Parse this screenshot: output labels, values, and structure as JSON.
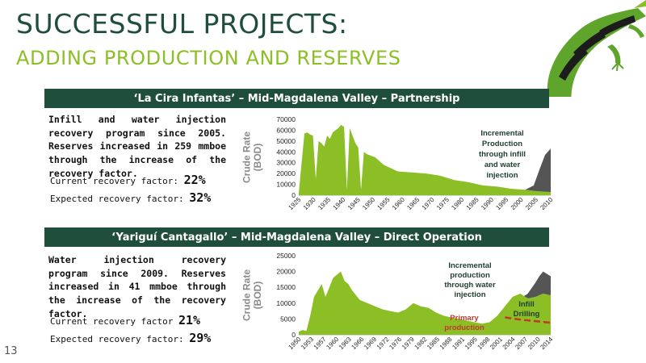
{
  "slide": {
    "title": "SUCCESSFUL PROJECTS:",
    "subtitle": "ADDING PRODUCTION AND RESERVES",
    "page_number": "13",
    "colors": {
      "title": "#1f4e3d",
      "subtitle": "#8cbf26",
      "banner": "#1f4e3d",
      "primary_fill": "#8cbf26",
      "incremental_fill": "#555555",
      "primary_line": "#c0392b"
    },
    "logo_icon": "gecko-icon"
  },
  "section1": {
    "banner": "‘La Cira Infantas’ – Mid-Magdalena Valley – Partnership",
    "description": "Infill and water injection recovery program since 2005. Reserves increased in 259 mmboe through the increase of the recovery factor.",
    "current_label": "Current recovery factor:",
    "current_value": "22%",
    "expected_label": "Expected recovery factor:",
    "expected_value": "32%"
  },
  "section2": {
    "banner": "‘Yariguí Cantagallo’ – Mid-Magdalena Valley – Direct Operation",
    "description": "Water injection recovery program since 2009. Reserves increased in 41 mmboe through the increase of the recovery factor.",
    "current_label": "Current recovery factor",
    "current_value": "21%",
    "expected_label": "Expected recovery factor:",
    "expected_value": "29%"
  },
  "chart_data": [
    {
      "type": "area",
      "ylabel": "Crude Rate (BOD)",
      "ylim": [
        0,
        70000
      ],
      "yticks": [
        "70000",
        "60000",
        "50000",
        "40000",
        "30000",
        "20000",
        "10000",
        "0"
      ],
      "xticks": [
        "1925",
        "1930",
        "1935",
        "1940",
        "1945",
        "1950",
        "1955",
        "1960",
        "1965",
        "1970",
        "1975",
        "1980",
        "1985",
        "1990",
        "1995",
        "2000",
        "2005",
        "2010"
      ],
      "xlim": [
        1925,
        2014
      ],
      "annotation": "Incremental Production through infill and water injection",
      "series": [
        {
          "type": "primary",
          "x": [
            1925,
            1926,
            1927,
            1928,
            1929,
            1930,
            1931,
            1932,
            1933,
            1934,
            1935,
            1936,
            1937,
            1938,
            1939,
            1940,
            1941,
            1942,
            1943,
            1944,
            1945,
            1946,
            1947,
            1948,
            1949,
            1950,
            1952,
            1955,
            1960,
            1965,
            1970,
            1975,
            1980,
            1985,
            1990,
            1995,
            2000,
            2005,
            2008,
            2010,
            2014
          ],
          "values": [
            2000,
            30000,
            57000,
            58000,
            56000,
            55000,
            15000,
            50000,
            48000,
            45000,
            55000,
            52000,
            58000,
            60000,
            62000,
            65000,
            63000,
            5000,
            62000,
            55000,
            48000,
            44000,
            5000,
            40000,
            38000,
            37000,
            35000,
            28000,
            22000,
            21000,
            20000,
            18000,
            14000,
            12000,
            9000,
            8000,
            6000,
            5000,
            4000,
            3500,
            3000
          ]
        },
        {
          "type": "incremental",
          "x": [
            2005,
            2008,
            2010,
            2012,
            2014
          ],
          "values": [
            0,
            5000,
            20000,
            34000,
            40000
          ]
        }
      ]
    },
    {
      "type": "area",
      "ylabel": "Crude Rate (BOD)",
      "ylim": [
        0,
        25000
      ],
      "yticks": [
        "25000",
        "20000",
        "15000",
        "10000",
        "5000",
        "0"
      ],
      "xticks": [
        "1950",
        "1953",
        "1957",
        "1960",
        "1963",
        "1966",
        "1969",
        "1972",
        "1976",
        "1979",
        "1982",
        "1985",
        "1988",
        "1991",
        "1995",
        "1998",
        "2001",
        "2004",
        "2007",
        "2010",
        "2014"
      ],
      "xlim": [
        1950,
        2016
      ],
      "annotations": [
        "Incremental production through water injection",
        "Infill Drilling",
        "Primary production"
      ],
      "series": [
        {
          "type": "primary",
          "x": [
            1950,
            1951,
            1952,
            1953,
            1954,
            1955,
            1956,
            1957,
            1958,
            1959,
            1960,
            1961,
            1962,
            1963,
            1964,
            1965,
            1966,
            1968,
            1970,
            1972,
            1974,
            1976,
            1978,
            1980,
            1982,
            1984,
            1986,
            1988,
            1990,
            1992,
            1994,
            1996,
            1998,
            2000,
            2002,
            2004,
            2006,
            2008,
            2010,
            2012,
            2014,
            2016
          ],
          "values": [
            1000,
            1500,
            1200,
            6000,
            12000,
            14000,
            16000,
            12000,
            15000,
            18000,
            19000,
            20000,
            17000,
            16000,
            14000,
            12500,
            11000,
            10000,
            9000,
            8000,
            7500,
            7000,
            8000,
            10000,
            9000,
            8500,
            7000,
            6000,
            5500,
            5000,
            4500,
            4000,
            3500,
            4000,
            6000,
            9000,
            12000,
            13000,
            11500,
            12000,
            13000,
            12500
          ]
        },
        {
          "type": "incremental",
          "x": [
            2009,
            2010,
            2011,
            2012,
            2013,
            2014,
            2015,
            2016
          ],
          "values": [
            0,
            1500,
            3000,
            4500,
            6000,
            7000,
            6500,
            6000
          ]
        },
        {
          "type": "primary-decline",
          "x": [
            2004,
            2008,
            2012,
            2016
          ],
          "values": [
            5500,
            4800,
            4300,
            3800
          ]
        }
      ]
    }
  ]
}
